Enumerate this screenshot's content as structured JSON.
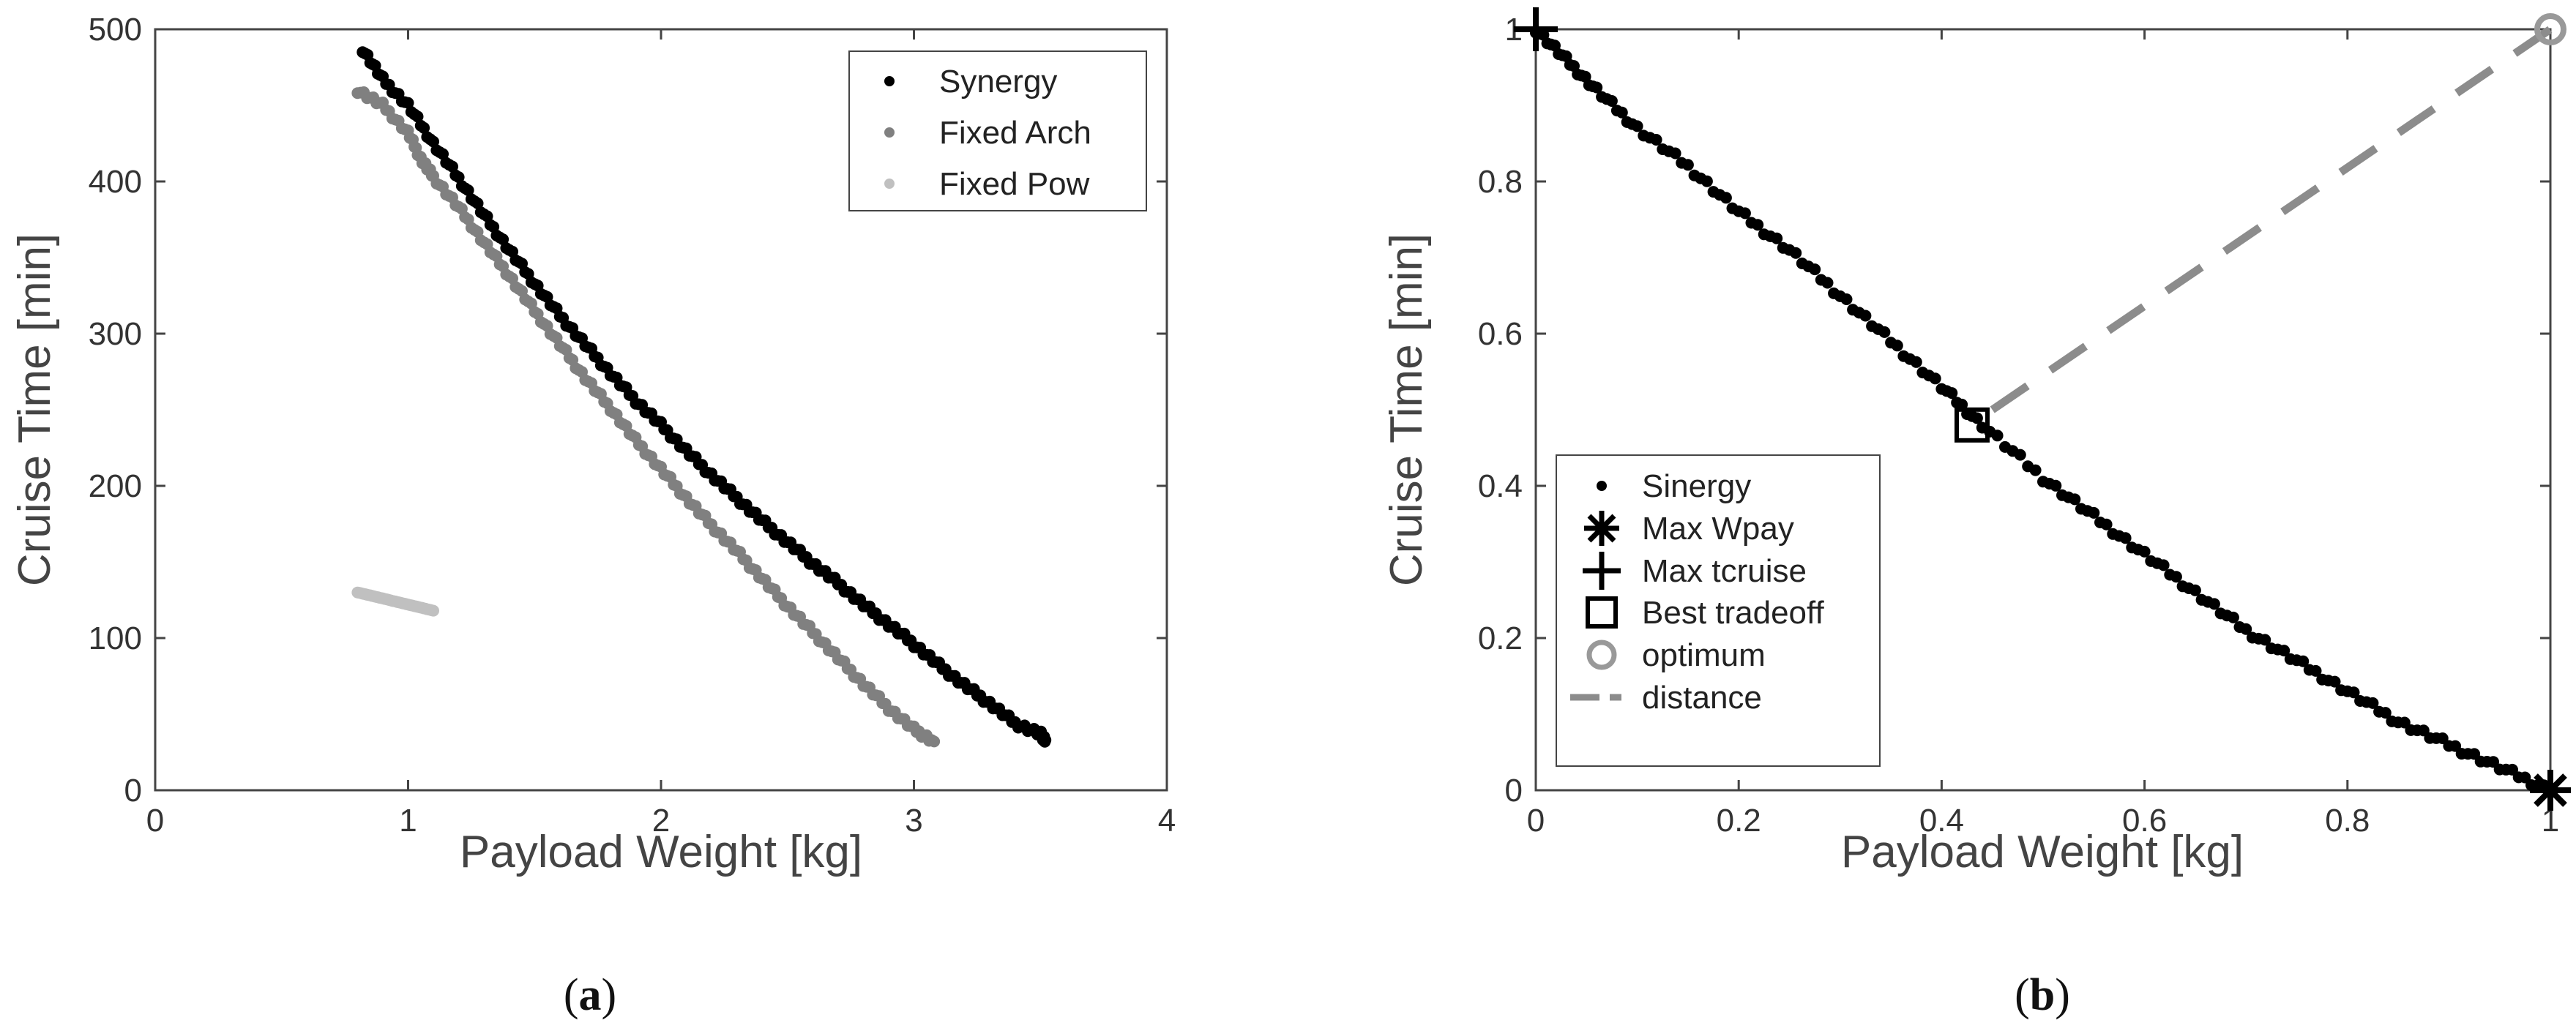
{
  "colors": {
    "series_black": "#000000",
    "series_mid_gray": "#808080",
    "series_light_gray": "#c0c0c0",
    "optimum_gray": "#999999",
    "distance_gray": "#8c8c8c",
    "axis": "#444444"
  },
  "chart_data": [
    {
      "type": "scatter",
      "panel_label": "a",
      "xlabel": "Payload Weight [kg]",
      "ylabel": "Cruise Time [min]",
      "xlim": [
        0,
        4
      ],
      "ylim": [
        0,
        500
      ],
      "xticks": [
        "0",
        "1",
        "2",
        "3",
        "4"
      ],
      "yticks": [
        "0",
        "100",
        "200",
        "300",
        "400",
        "500"
      ],
      "legend_position": "top-right",
      "series": [
        {
          "name": "Synergy",
          "color": "#000000",
          "x": [
            0.82,
            0.9,
            1.0,
            1.1,
            1.2,
            1.3,
            1.4,
            1.5,
            1.6,
            1.7,
            1.8,
            1.9,
            2.0,
            2.1,
            2.2,
            2.3,
            2.4,
            2.5,
            2.6,
            2.7,
            2.8,
            2.9,
            3.0,
            3.1,
            3.2,
            3.3,
            3.4,
            3.5,
            3.52
          ],
          "y": [
            487,
            467,
            450,
            425,
            402,
            378,
            355,
            333,
            312,
            293,
            274,
            256,
            240,
            223,
            207,
            192,
            177,
            163,
            149,
            136,
            122,
            109,
            96,
            82,
            69,
            57,
            44,
            37,
            33
          ]
        },
        {
          "name": "Fixed Arch",
          "color": "#808080",
          "x": [
            0.8,
            0.9,
            1.0,
            1.05,
            1.1,
            1.2,
            1.3,
            1.4,
            1.5,
            1.6,
            1.7,
            1.8,
            1.9,
            2.0,
            2.1,
            2.2,
            2.3,
            2.4,
            2.5,
            2.6,
            2.7,
            2.8,
            2.9,
            3.0,
            3.08
          ],
          "y": [
            460,
            450,
            432,
            415,
            403,
            383,
            360,
            338,
            315,
            293,
            271,
            251,
            230,
            211,
            192,
            174,
            157,
            139,
            121,
            104,
            87,
            70,
            54,
            40,
            32
          ]
        },
        {
          "name": "Fixed Pow",
          "color": "#c0c0c0",
          "x": [
            0.8,
            0.85,
            0.9,
            0.95,
            1.0,
            1.05,
            1.1
          ],
          "y": [
            130,
            128,
            126,
            124,
            122,
            120,
            118
          ]
        }
      ]
    },
    {
      "type": "scatter",
      "panel_label": "b",
      "xlabel": "Payload Weight [kg]",
      "ylabel": "Cruise Time [min]",
      "xlim": [
        0,
        1
      ],
      "ylim": [
        0,
        1
      ],
      "xticks": [
        "0",
        "0.2",
        "0.4",
        "0.6",
        "0.8",
        "1"
      ],
      "yticks": [
        "0",
        "0.2",
        "0.4",
        "0.6",
        "0.8",
        "1"
      ],
      "legend_position": "bottom-left",
      "series": [
        {
          "name": "Sinergy",
          "color": "#000000",
          "x": [
            0.0,
            0.03,
            0.06,
            0.1,
            0.15,
            0.2,
            0.25,
            0.3,
            0.35,
            0.4,
            0.44,
            0.5,
            0.55,
            0.6,
            0.65,
            0.7,
            0.75,
            0.8,
            0.85,
            0.9,
            0.95,
            1.0
          ],
          "y": [
            1.0,
            0.96,
            0.92,
            0.87,
            0.82,
            0.76,
            0.71,
            0.65,
            0.59,
            0.53,
            0.48,
            0.41,
            0.36,
            0.31,
            0.26,
            0.21,
            0.17,
            0.13,
            0.09,
            0.06,
            0.03,
            0.0
          ]
        }
      ],
      "markers": [
        {
          "name": "Max Wpay",
          "symbol": "asterisk",
          "x": 1.0,
          "y": 0.0
        },
        {
          "name": "Max tcruise",
          "symbol": "plus",
          "x": 0.0,
          "y": 1.0
        },
        {
          "name": "Best tradeoff",
          "symbol": "square",
          "x": 0.43,
          "y": 0.48
        },
        {
          "name": "optimum",
          "symbol": "circle",
          "x": 1.0,
          "y": 1.0
        }
      ],
      "lines": [
        {
          "name": "distance",
          "style": "dashed",
          "x": [
            0.45,
            1.0
          ],
          "y": [
            0.5,
            1.0
          ]
        }
      ],
      "legend_entries": [
        "Sinergy",
        "Max Wpay",
        "Max tcruise",
        "Best tradeoff",
        "optimum",
        "distance"
      ]
    }
  ],
  "captions": {
    "a": "a",
    "b": "b"
  }
}
